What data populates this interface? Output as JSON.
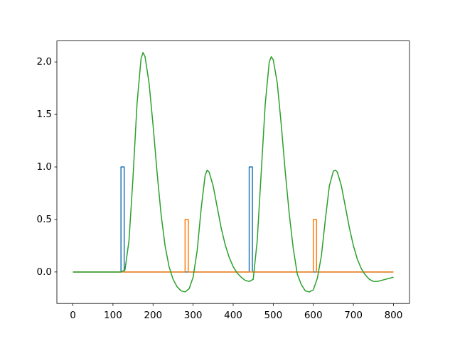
{
  "chart_data": {
    "type": "line",
    "xlim": [
      -40,
      840
    ],
    "ylim": [
      -0.3,
      2.2
    ],
    "xticks": [
      0,
      100,
      200,
      300,
      400,
      500,
      600,
      700,
      800
    ],
    "yticks": [
      {
        "value": 0,
        "label": "0.0"
      },
      {
        "value": 0.5,
        "label": "0.5"
      },
      {
        "value": 1,
        "label": "1.0"
      },
      {
        "value": 1.5,
        "label": "1.5"
      },
      {
        "value": 2,
        "label": "2.0"
      }
    ],
    "grid": false,
    "series": [
      {
        "color": "#1f77b4",
        "x": [
          0,
          120,
          120,
          128,
          128,
          440,
          440,
          448,
          448,
          800
        ],
        "values": [
          0,
          0,
          1,
          1,
          0,
          0,
          1,
          1,
          0,
          0
        ]
      },
      {
        "color": "#ff7f0e",
        "x": [
          0,
          280,
          280,
          288,
          288,
          600,
          600,
          608,
          608,
          800
        ],
        "values": [
          0,
          0,
          0.5,
          0.5,
          0,
          0,
          0.5,
          0.5,
          0,
          0
        ]
      },
      {
        "color": "#2ca02c",
        "x": [
          0,
          120,
          130,
          140,
          150,
          160,
          170,
          175,
          180,
          190,
          200,
          210,
          220,
          230,
          240,
          250,
          260,
          270,
          280,
          290,
          300,
          310,
          320,
          330,
          335,
          340,
          350,
          360,
          370,
          380,
          390,
          400,
          410,
          420,
          430,
          440,
          450,
          460,
          470,
          480,
          490,
          495,
          500,
          510,
          520,
          530,
          540,
          550,
          560,
          570,
          580,
          590,
          600,
          610,
          620,
          630,
          640,
          650,
          655,
          660,
          670,
          680,
          690,
          700,
          710,
          720,
          730,
          740,
          750,
          760,
          770,
          780,
          790,
          800
        ],
        "values": [
          0,
          0,
          0.02,
          0.3,
          0.9,
          1.6,
          2.03,
          2.09,
          2.05,
          1.8,
          1.4,
          0.95,
          0.55,
          0.25,
          0.05,
          -0.07,
          -0.14,
          -0.18,
          -0.19,
          -0.16,
          -0.05,
          0.2,
          0.6,
          0.92,
          0.97,
          0.95,
          0.82,
          0.62,
          0.42,
          0.26,
          0.14,
          0.05,
          -0.01,
          -0.05,
          -0.08,
          -0.09,
          -0.07,
          0.3,
          0.95,
          1.6,
          2.0,
          2.05,
          2.02,
          1.8,
          1.4,
          0.95,
          0.55,
          0.22,
          -0.02,
          -0.12,
          -0.18,
          -0.19,
          -0.17,
          -0.06,
          0.15,
          0.5,
          0.82,
          0.96,
          0.97,
          0.95,
          0.82,
          0.62,
          0.42,
          0.25,
          0.12,
          0.03,
          -0.03,
          -0.07,
          -0.09,
          -0.09,
          -0.08,
          -0.07,
          -0.06,
          -0.05
        ]
      }
    ]
  }
}
